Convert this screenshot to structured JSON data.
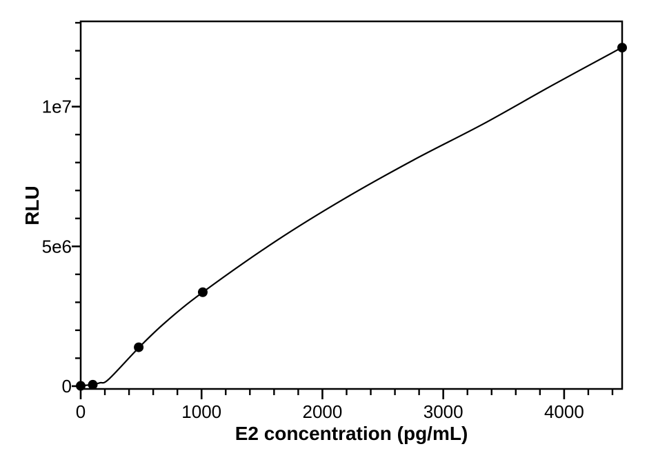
{
  "chart_data": {
    "type": "line",
    "title": "",
    "xlabel": "E2 concentration (pg/mL)",
    "ylabel": "RLU",
    "xlim": [
      0,
      4480
    ],
    "ylim": [
      -100000,
      13050000
    ],
    "grid": false,
    "legend": null,
    "colors": {
      "background": "#ffffff",
      "frame": "#000000",
      "line": "#000000",
      "marker": "#000000",
      "text": "#000000"
    },
    "x_axis": {
      "major_ticks": [
        0,
        1000,
        2000,
        3000,
        4000
      ],
      "major_tick_labels": [
        "0",
        "1000",
        "2000",
        "3000",
        "4000"
      ],
      "minor_tick_step": 200
    },
    "y_axis": {
      "major_ticks": [
        0,
        5000000,
        10000000
      ],
      "major_tick_labels": [
        "0",
        "5e6",
        "1e7"
      ],
      "minor_tick_step": 1000000
    },
    "points": {
      "description": "calibrator data points (E2 pg/mL vs RLU)",
      "x": [
        0,
        100,
        480,
        1010,
        4480
      ],
      "y": [
        10000,
        50000,
        1390000,
        3360000,
        12110000
      ]
    },
    "curve_points": [
      [
        0,
        10000
      ],
      [
        95,
        57000
      ],
      [
        160,
        120000
      ],
      [
        233,
        250000
      ],
      [
        484,
        1390000
      ],
      [
        700,
        2280000
      ],
      [
        1010,
        3360000
      ],
      [
        1615,
        5190000
      ],
      [
        2187,
        6720000
      ],
      [
        2758,
        8100000
      ],
      [
        3330,
        9380000
      ],
      [
        3901,
        10760000
      ],
      [
        4480,
        12120000
      ]
    ]
  }
}
